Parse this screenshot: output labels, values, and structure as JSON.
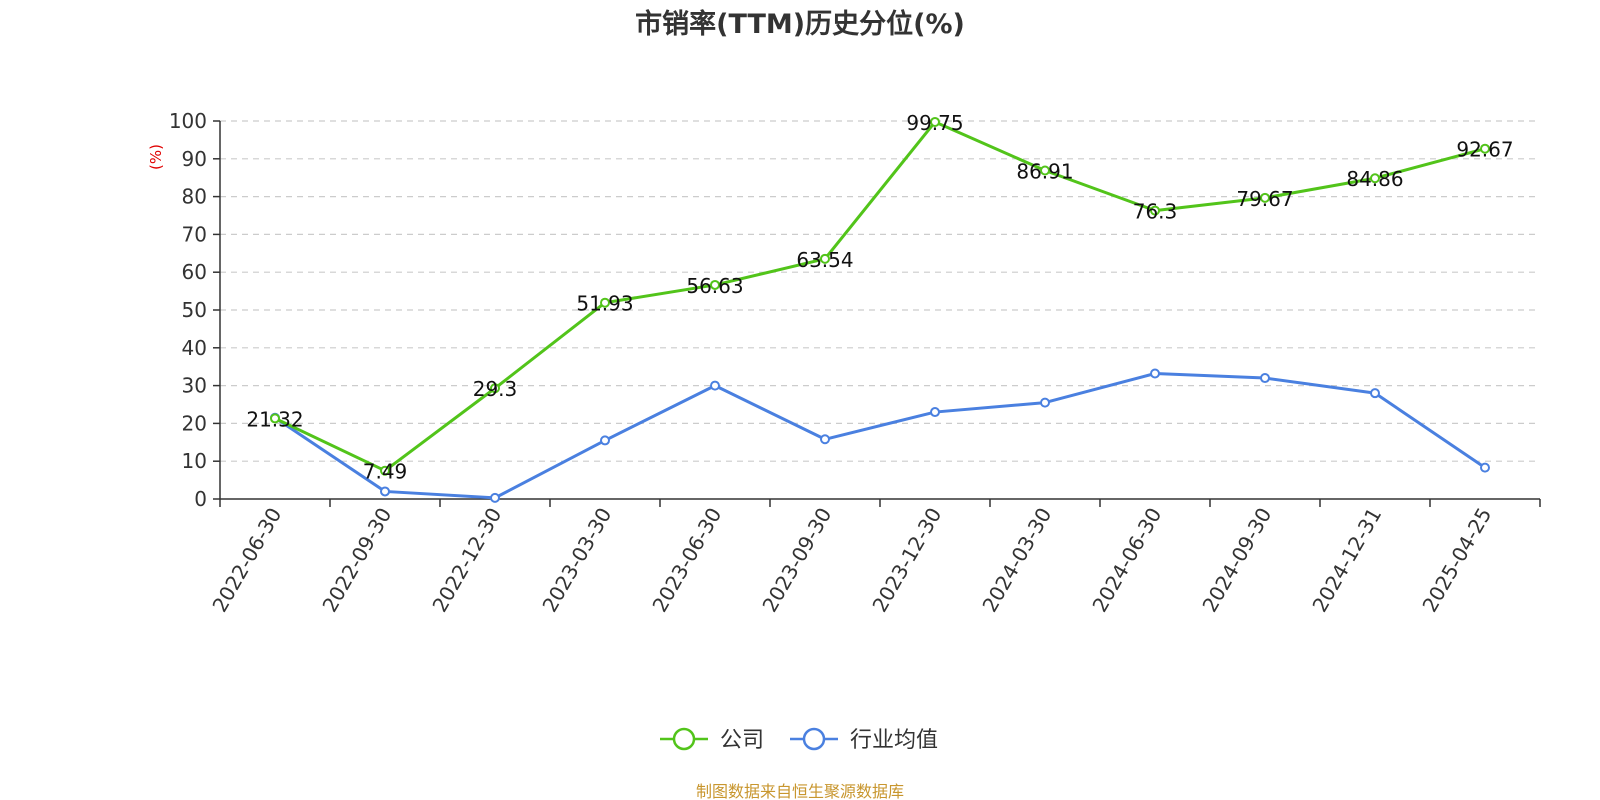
{
  "chart_data": {
    "type": "line",
    "title": "市销率(TTM)历史分位(%)",
    "ylabel": "(%)",
    "ylim": [
      0,
      100
    ],
    "yticks": [
      0,
      10,
      20,
      30,
      40,
      50,
      60,
      70,
      80,
      90,
      100
    ],
    "grid": true,
    "legend_position": "bottom",
    "categories": [
      "2022-06-30",
      "2022-09-30",
      "2022-12-30",
      "2023-03-30",
      "2023-06-30",
      "2023-09-30",
      "2023-12-30",
      "2024-03-30",
      "2024-06-30",
      "2024-09-30",
      "2024-12-31",
      "2025-04-25"
    ],
    "series": [
      {
        "name": "公司",
        "color": "#52c41a",
        "values": [
          21.32,
          7.49,
          29.3,
          51.93,
          56.63,
          63.54,
          99.75,
          86.91,
          76.3,
          79.67,
          84.86,
          92.67
        ],
        "show_labels": true
      },
      {
        "name": "行业均值",
        "color": "#4a80e0",
        "values": [
          21.5,
          2.0,
          0.3,
          15.5,
          30.0,
          15.8,
          23.0,
          25.5,
          33.2,
          32.0,
          28.0,
          8.3
        ],
        "show_labels": false
      }
    ],
    "source": "制图数据来自恒生聚源数据库"
  }
}
